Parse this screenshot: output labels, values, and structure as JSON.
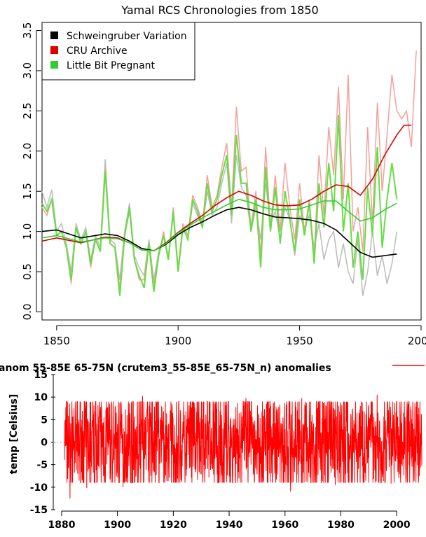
{
  "chart_data": [
    {
      "type": "line",
      "title": "Yamal RCS Chronologies from 1850",
      "xlabel": "",
      "ylabel": "",
      "xlim": [
        1844,
        2000
      ],
      "ylim": [
        -0.1,
        3.6
      ],
      "x_ticks": [
        1850,
        1900,
        1950,
        2000
      ],
      "y_ticks": [
        0.0,
        0.5,
        1.0,
        1.5,
        2.0,
        2.5,
        3.0,
        3.5
      ],
      "legend_position": "top-left",
      "grid": false,
      "series": [
        {
          "name": "Schweingruber Variation",
          "color": "#000000",
          "smooth_x": [
            1844,
            1850,
            1860,
            1870,
            1875,
            1880,
            1885,
            1890,
            1895,
            1900,
            1905,
            1910,
            1915,
            1920,
            1925,
            1930,
            1935,
            1940,
            1945,
            1950,
            1955,
            1960,
            1965,
            1970,
            1975,
            1980,
            1985,
            1990
          ],
          "smooth_y": [
            1.0,
            1.02,
            0.92,
            0.97,
            0.95,
            0.88,
            0.79,
            0.76,
            0.84,
            0.96,
            1.05,
            1.12,
            1.2,
            1.27,
            1.3,
            1.27,
            1.22,
            1.18,
            1.17,
            1.16,
            1.14,
            1.1,
            1.02,
            0.88,
            0.74,
            0.68,
            0.7,
            0.72
          ],
          "raw_color": "#bbbbbb",
          "raw_x": [
            1844,
            1846,
            1848,
            1850,
            1852,
            1854,
            1856,
            1858,
            1860,
            1862,
            1864,
            1866,
            1868,
            1870,
            1872,
            1874,
            1876,
            1878,
            1880,
            1882,
            1884,
            1886,
            1888,
            1890,
            1892,
            1894,
            1896,
            1898,
            1900,
            1902,
            1904,
            1906,
            1908,
            1910,
            1912,
            1914,
            1916,
            1918,
            1920,
            1922,
            1924,
            1926,
            1928,
            1930,
            1932,
            1934,
            1936,
            1938,
            1940,
            1942,
            1944,
            1946,
            1948,
            1950,
            1952,
            1954,
            1956,
            1958,
            1960,
            1962,
            1964,
            1966,
            1968,
            1970,
            1972,
            1974,
            1976,
            1978,
            1980,
            1982,
            1984,
            1986,
            1988,
            1990
          ],
          "raw_y": [
            1.5,
            1.3,
            1.52,
            1.0,
            1.1,
            0.85,
            0.5,
            1.1,
            0.9,
            1.05,
            0.65,
            0.95,
            0.8,
            1.9,
            0.9,
            0.85,
            0.4,
            1.0,
            1.35,
            0.7,
            0.55,
            0.45,
            0.9,
            0.4,
            0.75,
            0.95,
            0.7,
            1.2,
            0.5,
            1.05,
            0.9,
            1.35,
            1.2,
            1.05,
            1.5,
            1.2,
            1.3,
            1.6,
            1.85,
            1.1,
            1.95,
            1.55,
            1.45,
            1.0,
            1.3,
            0.9,
            1.6,
            1.1,
            1.25,
            0.9,
            1.3,
            1.15,
            0.7,
            1.2,
            1.05,
            1.2,
            0.8,
            1.1,
            0.65,
            0.9,
            1.0,
            0.55,
            0.85,
            0.5,
            0.35,
            0.9,
            0.2,
            0.5,
            1.0,
            0.45,
            0.7,
            0.35,
            0.6,
            1.0
          ]
        },
        {
          "name": "CRU Archive",
          "color": "#dd0000",
          "smooth_x": [
            1844,
            1850,
            1860,
            1870,
            1875,
            1880,
            1885,
            1890,
            1895,
            1900,
            1905,
            1910,
            1915,
            1920,
            1925,
            1930,
            1935,
            1940,
            1945,
            1950,
            1955,
            1960,
            1965,
            1970,
            1975,
            1980,
            1985,
            1990,
            1993,
            1996
          ],
          "smooth_y": [
            0.88,
            0.92,
            0.86,
            0.93,
            0.92,
            0.86,
            0.77,
            0.76,
            0.86,
            0.99,
            1.1,
            1.2,
            1.32,
            1.42,
            1.5,
            1.45,
            1.38,
            1.33,
            1.32,
            1.33,
            1.4,
            1.5,
            1.58,
            1.56,
            1.45,
            1.65,
            1.95,
            2.2,
            2.32,
            2.32
          ],
          "raw_color": "#f4a09a",
          "raw_x": [
            1844,
            1846,
            1848,
            1850,
            1852,
            1854,
            1856,
            1858,
            1860,
            1862,
            1864,
            1866,
            1868,
            1870,
            1872,
            1874,
            1876,
            1878,
            1880,
            1882,
            1884,
            1886,
            1888,
            1890,
            1892,
            1894,
            1896,
            1898,
            1900,
            1902,
            1904,
            1906,
            1908,
            1910,
            1912,
            1914,
            1916,
            1918,
            1920,
            1922,
            1924,
            1926,
            1928,
            1930,
            1932,
            1934,
            1936,
            1938,
            1940,
            1942,
            1944,
            1946,
            1948,
            1950,
            1952,
            1954,
            1956,
            1958,
            1960,
            1962,
            1964,
            1966,
            1968,
            1970,
            1972,
            1974,
            1976,
            1978,
            1980,
            1982,
            1984,
            1986,
            1988,
            1990,
            1992,
            1994,
            1996
          ],
          "raw_y": [
            1.3,
            1.2,
            1.4,
            0.95,
            1.0,
            0.8,
            0.35,
            1.05,
            0.85,
            1.0,
            0.55,
            0.9,
            0.75,
            1.8,
            0.85,
            0.8,
            0.3,
            0.95,
            1.25,
            0.65,
            0.4,
            0.4,
            0.85,
            0.35,
            0.7,
            1.0,
            0.65,
            1.3,
            0.55,
            1.1,
            0.95,
            1.45,
            1.3,
            1.1,
            1.7,
            1.3,
            1.45,
            1.8,
            2.1,
            1.3,
            2.55,
            1.75,
            1.8,
            1.05,
            1.5,
            0.7,
            2.05,
            1.05,
            1.7,
            1.0,
            1.85,
            1.3,
            0.9,
            1.6,
            1.0,
            1.4,
            0.7,
            1.95,
            1.2,
            2.3,
            1.7,
            2.8,
            1.4,
            2.95,
            1.0,
            1.3,
            0.75,
            2.3,
            1.1,
            2.6,
            1.5,
            2.2,
            2.95,
            2.5,
            2.4,
            2.5,
            2.05
          ],
          "raw_tail_x": [
            1996,
            1998
          ],
          "raw_tail_y": [
            2.05,
            3.25
          ]
        },
        {
          "name": "Little Bit Pregnant",
          "color": "#33cc33",
          "smooth_x": [
            1844,
            1850,
            1860,
            1870,
            1875,
            1880,
            1885,
            1890,
            1895,
            1900,
            1905,
            1910,
            1915,
            1920,
            1925,
            1930,
            1935,
            1940,
            1945,
            1950,
            1955,
            1960,
            1965,
            1970,
            1975,
            1980,
            1985,
            1990
          ],
          "smooth_y": [
            0.92,
            0.95,
            0.87,
            0.92,
            0.91,
            0.86,
            0.77,
            0.76,
            0.85,
            0.98,
            1.08,
            1.17,
            1.25,
            1.33,
            1.4,
            1.36,
            1.3,
            1.27,
            1.27,
            1.28,
            1.33,
            1.38,
            1.38,
            1.25,
            1.13,
            1.17,
            1.27,
            1.35
          ],
          "raw_x": [
            1844,
            1846,
            1848,
            1850,
            1852,
            1854,
            1856,
            1858,
            1860,
            1862,
            1864,
            1866,
            1868,
            1870,
            1872,
            1874,
            1876,
            1878,
            1880,
            1882,
            1884,
            1886,
            1888,
            1890,
            1892,
            1894,
            1896,
            1898,
            1900,
            1902,
            1904,
            1906,
            1908,
            1910,
            1912,
            1914,
            1916,
            1918,
            1920,
            1922,
            1924,
            1926,
            1928,
            1930,
            1932,
            1934,
            1936,
            1938,
            1940,
            1942,
            1944,
            1946,
            1948,
            1950,
            1952,
            1954,
            1956,
            1958,
            1960,
            1962,
            1964,
            1966,
            1968,
            1970,
            1972,
            1974,
            1976,
            1978,
            1980,
            1982,
            1984,
            1986,
            1988,
            1990
          ],
          "raw_y": [
            1.35,
            1.25,
            1.4,
            0.95,
            1.0,
            0.8,
            0.4,
            1.05,
            0.85,
            1.0,
            0.6,
            0.9,
            0.75,
            1.75,
            0.85,
            0.8,
            0.2,
            0.95,
            1.3,
            0.65,
            0.45,
            0.3,
            0.85,
            0.25,
            0.7,
            0.95,
            0.65,
            1.25,
            0.5,
            1.05,
            0.9,
            1.4,
            1.25,
            1.05,
            1.6,
            1.25,
            1.4,
            1.7,
            1.95,
            1.2,
            2.2,
            1.6,
            1.6,
            1.0,
            1.4,
            0.55,
            1.8,
            1.0,
            1.55,
            0.85,
            1.5,
            1.15,
            0.75,
            1.4,
            0.95,
            1.35,
            0.6,
            1.6,
            1.05,
            1.85,
            1.25,
            2.45,
            1.0,
            1.6,
            0.55,
            1.0,
            0.4,
            1.55,
            0.95,
            2.05,
            0.8,
            1.4,
            1.85,
            1.4
          ]
        }
      ]
    },
    {
      "type": "line",
      "title": "",
      "legend_label": "anom 55-85E 65-75N (crutem3_55-85E_65-75N_n) anomalies",
      "ylabel": "temp [Celsius]",
      "xlabel": "",
      "xlim": [
        1877,
        2010
      ],
      "ylim": [
        -15,
        15
      ],
      "x_ticks": [
        1880,
        1900,
        1920,
        1940,
        1960,
        1980,
        2000
      ],
      "y_ticks": [
        -15,
        -10,
        -5,
        0,
        5,
        10,
        15
      ],
      "legend_position": "top",
      "grid": false,
      "zero_line": true,
      "series": [
        {
          "name": "anom 55-85E 65-75N (crutem3_55-85E_65-75N_n) anomalies",
          "color": "#ff0000",
          "x_start": 1881,
          "x_end": 2009,
          "amplitude": 7.5,
          "extremes": [
            [
              1883,
              -12.5
            ],
            [
              1889,
              -10.2
            ],
            [
              1898,
              8.2
            ],
            [
              1902,
              -10.0
            ],
            [
              1909,
              10.2
            ],
            [
              1923,
              -8.8
            ],
            [
              1935,
              8.5
            ],
            [
              1938,
              -9.0
            ],
            [
              1946,
              9.8
            ],
            [
              1962,
              -11.0
            ],
            [
              1966,
              9.8
            ],
            [
              1978,
              -9.5
            ],
            [
              1987,
              8.0
            ],
            [
              1993,
              10.5
            ],
            [
              1998,
              -9.2
            ],
            [
              2007,
              7.8
            ]
          ]
        }
      ]
    }
  ]
}
